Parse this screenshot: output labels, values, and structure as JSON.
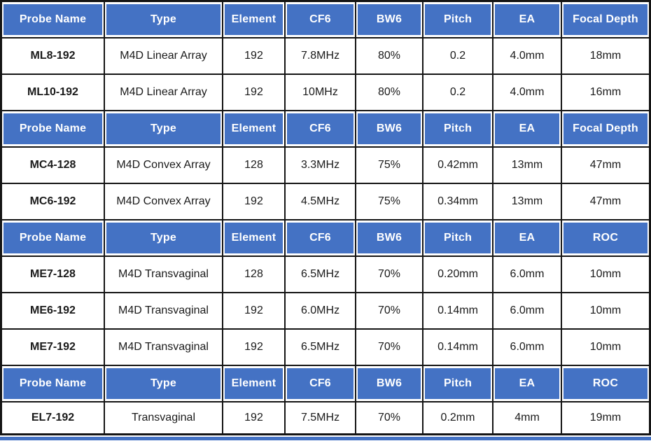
{
  "colors": {
    "header_blue": "#4472C4",
    "grid_border": "#151515",
    "header_text": "#ffffff",
    "body_text": "#1a1a1a"
  },
  "sections": [
    {
      "headers": [
        "Probe Name",
        "Type",
        "Element",
        "CF6",
        "BW6",
        "Pitch",
        "EA",
        "Focal Depth"
      ],
      "rows": [
        [
          "ML8-192",
          "M4D Linear Array",
          "192",
          "7.8MHz",
          "80%",
          "0.2",
          "4.0mm",
          "18mm"
        ],
        [
          "ML10-192",
          "M4D Linear Array",
          "192",
          "10MHz",
          "80%",
          "0.2",
          "4.0mm",
          "16mm"
        ]
      ]
    },
    {
      "headers": [
        "Probe Name",
        "Type",
        "Element",
        "CF6",
        "BW6",
        "Pitch",
        "EA",
        "Focal Depth"
      ],
      "rows": [
        [
          "MC4-128",
          "M4D Convex Array",
          "128",
          "3.3MHz",
          "75%",
          "0.42mm",
          "13mm",
          "47mm"
        ],
        [
          "MC6-192",
          "M4D Convex Array",
          "192",
          "4.5MHz",
          "75%",
          "0.34mm",
          "13mm",
          "47mm"
        ]
      ]
    },
    {
      "headers": [
        "Probe Name",
        "Type",
        "Element",
        "CF6",
        "BW6",
        "Pitch",
        "EA",
        "ROC"
      ],
      "rows": [
        [
          "ME7-128",
          "M4D Transvaginal",
          "128",
          "6.5MHz",
          "70%",
          "0.20mm",
          "6.0mm",
          "10mm"
        ],
        [
          "ME6-192",
          "M4D Transvaginal",
          "192",
          "6.0MHz",
          "70%",
          "0.14mm",
          "6.0mm",
          "10mm"
        ],
        [
          "ME7-192",
          "M4D Transvaginal",
          "192",
          "6.5MHz",
          "70%",
          "0.14mm",
          "6.0mm",
          "10mm"
        ]
      ]
    },
    {
      "headers": [
        "Probe Name",
        "Type",
        "Element",
        "CF6",
        "BW6",
        "Pitch",
        "EA",
        "ROC"
      ],
      "rows": [
        [
          "EL7-192",
          "Transvaginal",
          "192",
          "7.5MHz",
          "70%",
          "0.2mm",
          "4mm",
          "19mm"
        ]
      ]
    }
  ]
}
